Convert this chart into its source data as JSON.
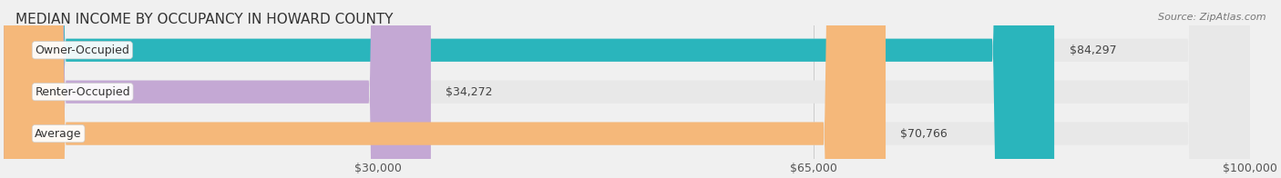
{
  "title": "MEDIAN INCOME BY OCCUPANCY IN HOWARD COUNTY",
  "source": "Source: ZipAtlas.com",
  "categories": [
    "Owner-Occupied",
    "Renter-Occupied",
    "Average"
  ],
  "values": [
    84297,
    34272,
    70766
  ],
  "bar_colors": [
    "#2ab5bc",
    "#c4a8d4",
    "#f5b87a"
  ],
  "value_labels": [
    "$84,297",
    "$34,272",
    "$70,766"
  ],
  "xlim": [
    0,
    100000
  ],
  "xticks": [
    0,
    30000,
    65000,
    100000
  ],
  "xtick_labels": [
    "",
    "$30,000",
    "$65,000",
    "$100,000"
  ],
  "bar_height": 0.55,
  "label_bg_color": "#ffffff",
  "background_color": "#f0f0f0",
  "bar_bg_color": "#e8e8e8",
  "title_fontsize": 11,
  "tick_fontsize": 9,
  "bar_label_fontsize": 9,
  "value_label_fontsize": 9
}
